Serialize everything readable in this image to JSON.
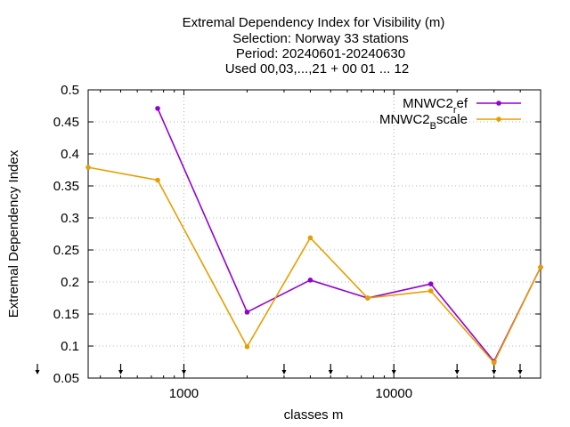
{
  "chart_data": {
    "type": "line",
    "title_lines": [
      "Extremal Dependency Index  for Visibility (m)",
      "Selection: Norway     33 stations",
      "Period: 20240601-20240630",
      "Used 00,03,...,21 + 00 01 ... 12"
    ],
    "xlabel": "classes m",
    "ylabel": "Extremal Dependency Index",
    "x_scale": "log",
    "xlim": [
      350,
      50000
    ],
    "ylim": [
      0.05,
      0.5
    ],
    "grid": true,
    "legend_position": "top-right",
    "x_ticks": [
      {
        "value": 1000,
        "label": "1000"
      },
      {
        "value": 10000,
        "label": "10000"
      }
    ],
    "y_ticks": [
      {
        "value": 0.05,
        "label": "0.05"
      },
      {
        "value": 0.1,
        "label": "0.1"
      },
      {
        "value": 0.15,
        "label": "0.15"
      },
      {
        "value": 0.2,
        "label": "0.2"
      },
      {
        "value": 0.25,
        "label": "0.25"
      },
      {
        "value": 0.3,
        "label": "0.3"
      },
      {
        "value": 0.35,
        "label": "0.35"
      },
      {
        "value": 0.4,
        "label": "0.4"
      },
      {
        "value": 0.45,
        "label": "0.45"
      },
      {
        "value": 0.5,
        "label": "0.5"
      }
    ],
    "threshold_markers_x": [
      350,
      500,
      1000,
      3000,
      5000,
      10000,
      20000,
      30000,
      50000
    ],
    "series": [
      {
        "name": "MNWC2_ref",
        "legend_main": "MNWC2",
        "legend_sub": "r",
        "legend_rest": "ef",
        "color": "#9400d3",
        "points": [
          {
            "x": 750,
            "y": 0.471
          },
          {
            "x": 2000,
            "y": 0.153
          },
          {
            "x": 4000,
            "y": 0.203
          },
          {
            "x": 7500,
            "y": 0.175
          },
          {
            "x": 15000,
            "y": 0.197
          },
          {
            "x": 30000,
            "y": 0.076
          },
          {
            "x": 50000,
            "y": 0.223
          }
        ]
      },
      {
        "name": "MNWC2_Bscale",
        "legend_main": "MNWC2",
        "legend_sub": "B",
        "legend_rest": "scale",
        "color": "#e69f00",
        "points": [
          {
            "x": 350,
            "y": 0.379
          },
          {
            "x": 750,
            "y": 0.359
          },
          {
            "x": 2000,
            "y": 0.099
          },
          {
            "x": 4000,
            "y": 0.269
          },
          {
            "x": 7500,
            "y": 0.175
          },
          {
            "x": 15000,
            "y": 0.186
          },
          {
            "x": 30000,
            "y": 0.074
          },
          {
            "x": 50000,
            "y": 0.223
          }
        ]
      }
    ]
  }
}
